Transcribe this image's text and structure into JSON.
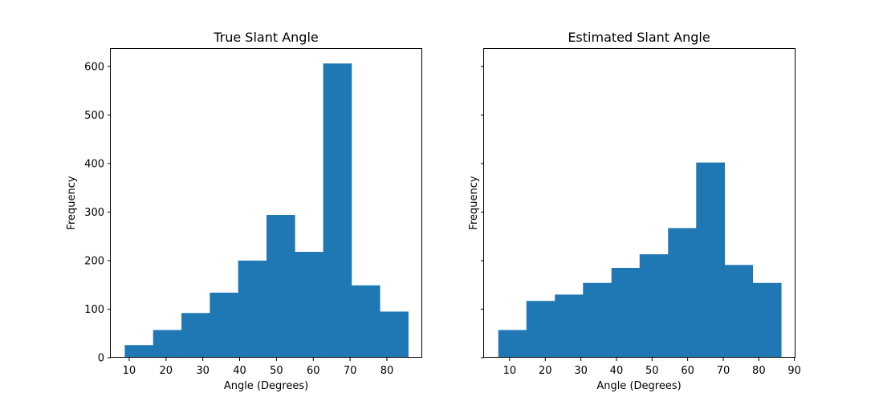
{
  "chart_data": [
    {
      "type": "bar",
      "title": "True Slant Angle",
      "xlabel": "Angle (Degrees)",
      "ylabel": "Frequency",
      "bin_edges": [
        8.8,
        16.5,
        24.2,
        31.9,
        39.6,
        47.3,
        55.0,
        62.7,
        70.4,
        78.1,
        85.8
      ],
      "values": [
        26,
        57,
        92,
        134,
        200,
        294,
        218,
        606,
        149,
        95
      ],
      "xlim": [
        5.0,
        89.6
      ],
      "ylim": [
        0,
        636
      ],
      "xticks": [
        10,
        20,
        30,
        40,
        50,
        60,
        70,
        80
      ],
      "yticks": [
        0,
        100,
        200,
        300,
        400,
        500,
        600
      ],
      "grid": false,
      "color": "#1f77b4"
    },
    {
      "type": "bar",
      "title": "Estimated Slant Angle",
      "xlabel": "Angle (Degrees)",
      "ylabel": "Frequency",
      "bin_edges": [
        6.8,
        14.7,
        22.7,
        30.6,
        38.6,
        46.5,
        54.5,
        62.4,
        70.4,
        78.3,
        86.3
      ],
      "values": [
        57,
        117,
        130,
        154,
        185,
        213,
        267,
        402,
        191,
        154
      ],
      "xlim": [
        2.8,
        90.3
      ],
      "ylim": [
        0,
        636
      ],
      "xticks": [
        10,
        20,
        30,
        40,
        50,
        60,
        70,
        80,
        90
      ],
      "yticks": [
        0,
        100,
        200,
        300,
        400,
        500,
        600
      ],
      "show_ytick_labels": false,
      "grid": false,
      "color": "#1f77b4"
    }
  ]
}
